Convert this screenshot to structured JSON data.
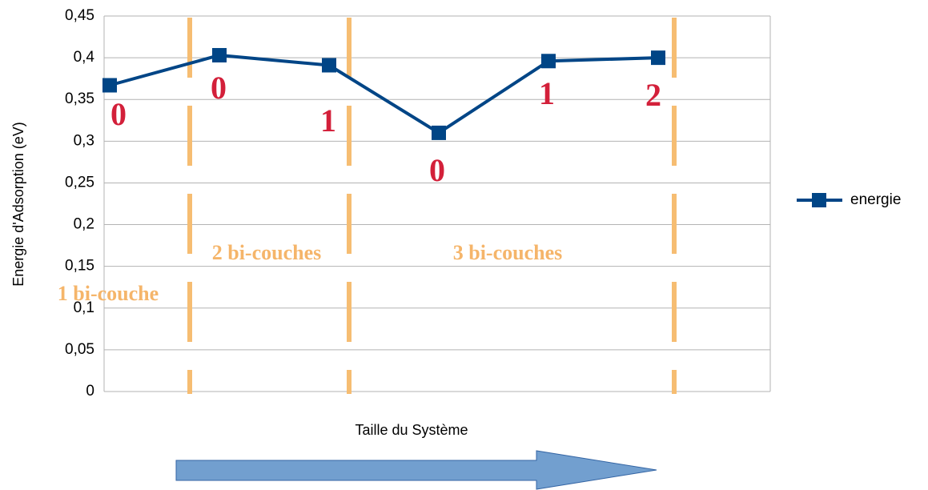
{
  "chart_data": {
    "type": "line",
    "x_label": "Taille du Système",
    "y_label": "Energie d'Adsorption (eV)",
    "categories": [
      null,
      null,
      null,
      null,
      null,
      null
    ],
    "series": [
      {
        "name": "energie",
        "color": "#004586",
        "values": [
          0.367,
          0.403,
          0.391,
          0.31,
          0.396,
          0.4
        ]
      }
    ],
    "ylim": [
      0,
      0.45
    ],
    "yticks": [
      0,
      {
        "value": 0.05,
        "label": "0,05"
      },
      {
        "value": 0.1,
        "label": "0,1"
      },
      {
        "value": 0.15,
        "label": "0,15"
      },
      {
        "value": 0.2,
        "label": "0,2"
      },
      {
        "value": 0.25,
        "label": "0,25"
      },
      {
        "value": 0.3,
        "label": "0,3"
      },
      {
        "value": 0.35,
        "label": "0,35"
      },
      {
        "value": 0.4,
        "label": "0,4"
      },
      {
        "value": 0.45,
        "label": "0,45"
      }
    ],
    "grid": true,
    "legend": "right",
    "annotations": [
      {
        "text": "0"
      },
      {
        "text": "0"
      },
      {
        "text": "1"
      },
      {
        "text": "0"
      },
      {
        "text": "1"
      },
      {
        "text": "2"
      },
      {
        "text": "1 bi-couche"
      },
      {
        "text": "2 bi-couches"
      },
      {
        "text": "3 bi-couches"
      }
    ]
  }
}
